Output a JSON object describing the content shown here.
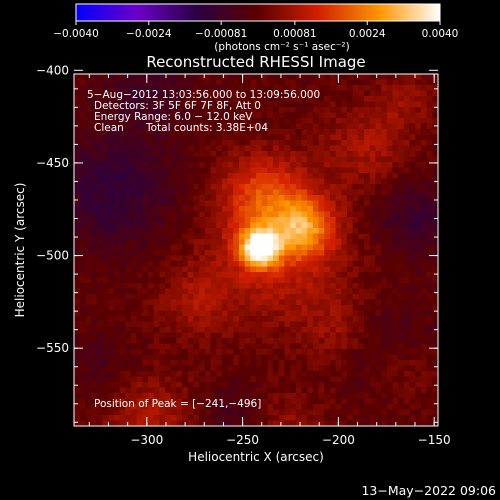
{
  "chart_data": {
    "type": "heatmap",
    "title": "Reconstructed RHESSI Image",
    "xlabel": "Heliocentric X (arcsec)",
    "ylabel": "Heliocentric Y (arcsec)",
    "xlim": [
      -338,
      -148
    ],
    "ylim": [
      -592,
      -402
    ],
    "x_ticks": [
      -300,
      -250,
      -200,
      -150
    ],
    "x_tick_labels": [
      "−300",
      "−250",
      "−200",
      "−150"
    ],
    "y_ticks": [
      -400,
      -450,
      -500,
      -550
    ],
    "y_tick_labels": [
      "−400",
      "−450",
      "−500",
      "−550"
    ],
    "colorbar": {
      "range": [
        -0.004,
        0.004
      ],
      "ticks": [
        -0.004,
        -0.0024,
        -0.00081,
        0.00081,
        0.0024,
        0.004
      ],
      "tick_labels": [
        "−0.0040",
        "−0.0024",
        "−0.00081",
        "0.00081",
        "0.0024",
        "0.0040"
      ],
      "unit_label": "(photons cm⁻² s⁻¹ asec⁻²)",
      "colors": [
        "#0000ff",
        "#6a00c8",
        "#2a0040",
        "#5a0000",
        "#d22000",
        "#ff9600",
        "#ffffff"
      ]
    },
    "annotations": [
      "5−Aug−2012 13:03:56.000 to 13:09:56.000",
      "Detectors: 3F 5F 6F 7F 8F, Att 0",
      "Energy Range: 6.0 − 12.0 keV",
      "Clean",
      "Total counts: 3.38E+04",
      "Position of Peak = [−241,−496]"
    ],
    "peak": {
      "x": -241,
      "y": -496,
      "value": 0.004
    },
    "sources": [
      {
        "x": -241,
        "y": -496,
        "amplitude": 0.0038,
        "sigma": 7
      },
      {
        "x": -218,
        "y": -485,
        "amplitude": 0.002,
        "sigma": 11
      },
      {
        "x": -238,
        "y": -468,
        "amplitude": 0.0015,
        "sigma": 16
      },
      {
        "x": -232,
        "y": -500,
        "amplitude": 0.0011,
        "sigma": 26
      },
      {
        "x": -275,
        "y": -525,
        "amplitude": 0.0007,
        "sigma": 14
      },
      {
        "x": -185,
        "y": -440,
        "amplitude": 0.0008,
        "sigma": 16
      },
      {
        "x": -198,
        "y": -540,
        "amplitude": 0.0006,
        "sigma": 14
      },
      {
        "x": -300,
        "y": -588,
        "amplitude": 0.0009,
        "sigma": 16
      },
      {
        "x": -225,
        "y": -590,
        "amplitude": 0.0005,
        "sigma": 12
      },
      {
        "x": -165,
        "y": -560,
        "amplitude": 0.0005,
        "sigma": 12
      },
      {
        "x": -165,
        "y": -415,
        "amplitude": 0.0006,
        "sigma": 10
      },
      {
        "x": -318,
        "y": -465,
        "amplitude": -0.0011,
        "sigma": 22
      },
      {
        "x": -300,
        "y": -410,
        "amplitude": -0.0007,
        "sigma": 14
      },
      {
        "x": -160,
        "y": -480,
        "amplitude": -0.0009,
        "sigma": 14
      },
      {
        "x": -175,
        "y": -548,
        "amplitude": -0.0006,
        "sigma": 16
      },
      {
        "x": -255,
        "y": -585,
        "amplitude": -0.0005,
        "sigma": 10
      },
      {
        "x": -325,
        "y": -560,
        "amplitude": -0.0004,
        "sigma": 12
      }
    ],
    "grid": false,
    "legend": "none"
  },
  "footer": {
    "timestamp": "13−May−2022 09:06"
  }
}
